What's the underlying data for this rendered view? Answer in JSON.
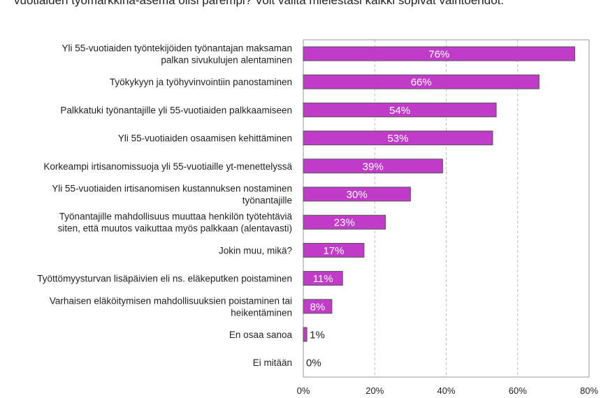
{
  "question": "vuotiaiden työmarkkina-asema olisi parempi? Voit valita mielestäsi kaikki sopivat vaihtoehdot.",
  "chart_data": {
    "type": "bar",
    "orientation": "horizontal",
    "categories": [
      [
        "Yli 55-vuotiaiden työntekijöiden työnantajan maksaman",
        "palkan sivukulujen alentaminen"
      ],
      [
        "Työkykyyn ja työhyvinvointiin panostaminen"
      ],
      [
        "Palkkatuki työnantajille yli 55-vuotiaiden palkkaamiseen"
      ],
      [
        "Yli 55-vuotiaiden osaamisen kehittäminen"
      ],
      [
        "Korkeampi irtisanomissuoja yli 55-vuotiaille yt-menettelyssä"
      ],
      [
        "Yli 55-vuotiaiden irtisanomisen kustannuksen nostaminen",
        "työnantajille"
      ],
      [
        "Työnantajille mahdollisuus muuttaa henkilön työtehtäviä",
        "siten, että muutos vaikuttaa myös palkkaan (alentavasti)"
      ],
      [
        "Jokin muu, mikä?"
      ],
      [
        "Työttömyysturvan lisäpäivien eli ns. eläkeputken poistaminen"
      ],
      [
        "Varhaisen eläköitymisen mahdollisuuksien poistaminen tai",
        "heikentäminen"
      ],
      [
        "En osaa sanoa"
      ],
      [
        "Ei mitään"
      ]
    ],
    "values": [
      76,
      66,
      54,
      53,
      39,
      30,
      23,
      17,
      11,
      8,
      1,
      0
    ],
    "data_labels": [
      "76%",
      "66%",
      "54%",
      "53%",
      "39%",
      "30%",
      "23%",
      "17%",
      "11%",
      "8%",
      "1%",
      "0%"
    ],
    "xlim": [
      0,
      80
    ],
    "x_ticks": [
      0,
      20,
      40,
      60,
      80
    ],
    "x_tick_labels": [
      "0%",
      "20%",
      "40%",
      "60%",
      "80%"
    ],
    "grid": "vertical",
    "bar_color": "#c03cc8",
    "bar_border_color": "#555555",
    "title": "",
    "xlabel": "",
    "ylabel": ""
  }
}
